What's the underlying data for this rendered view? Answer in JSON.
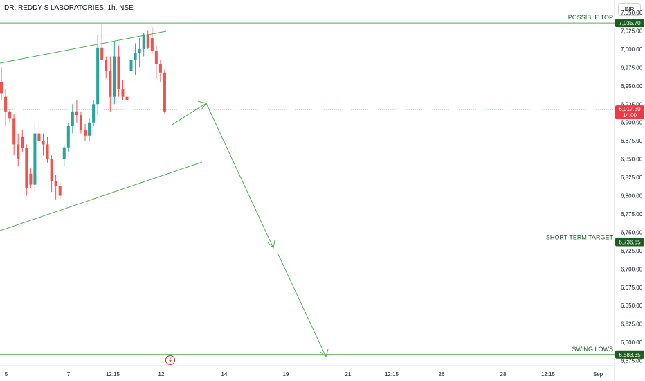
{
  "header": {
    "symbol_title": "DR. REDDY S LABORATORIES, 1h, NSE",
    "currency_button": "INR"
  },
  "colors": {
    "up": "#26a69a",
    "down": "#ef5350",
    "annotation": "#4caf50",
    "level_badge": "#1b5e20",
    "current_price": "#f23645"
  },
  "icons": {
    "events_marker": "lightning-icon"
  },
  "chart_data": {
    "type": "candlestick",
    "title": "DR. REDDY S LABORATORIES, 1h, NSE",
    "xlabel": "",
    "ylabel": "",
    "ylim": [
      6568,
      7067
    ],
    "grid": false,
    "y_axis_ticks": [
      "7,050.00",
      "7,025.00",
      "7,000.00",
      "6,975.00",
      "6,950.00",
      "6,925.00",
      "6,900.00",
      "6,875.00",
      "6,850.00",
      "6,825.00",
      "6,800.00",
      "6,775.00",
      "6,750.00",
      "6,725.00",
      "6,700.00",
      "6,675.00",
      "6,650.00",
      "6,625.00",
      "6,600.00",
      "6,575.00"
    ],
    "x_axis_ticks": [
      "5",
      "7",
      "12:15",
      "12",
      "14",
      "19",
      "21",
      "12:15",
      "26",
      "28",
      "12:15",
      "Sep"
    ],
    "ohlc": [
      [
        6955,
        6975,
        6930,
        6940
      ],
      [
        6935,
        6945,
        6895,
        6915
      ],
      [
        6915,
        6918,
        6900,
        6905
      ],
      [
        6905,
        6912,
        6855,
        6870
      ],
      [
        6870,
        6885,
        6840,
        6850
      ],
      [
        6880,
        6890,
        6860,
        6865
      ],
      [
        6865,
        6870,
        6800,
        6810
      ],
      [
        6830,
        6838,
        6810,
        6815
      ],
      [
        6815,
        6900,
        6805,
        6885
      ],
      [
        6885,
        6900,
        6870,
        6875
      ],
      [
        6875,
        6885,
        6855,
        6870
      ],
      [
        6870,
        6880,
        6845,
        6850
      ],
      [
        6850,
        6855,
        6805,
        6820
      ],
      [
        6820,
        6828,
        6795,
        6813
      ],
      [
        6813,
        6818,
        6795,
        6800
      ],
      [
        6850,
        6870,
        6840,
        6866
      ],
      [
        6866,
        6900,
        6860,
        6895
      ],
      [
        6895,
        6925,
        6885,
        6915
      ],
      [
        6915,
        6930,
        6900,
        6910
      ],
      [
        6910,
        6915,
        6885,
        6890
      ],
      [
        6890,
        6898,
        6875,
        6882
      ],
      [
        6882,
        6905,
        6875,
        6900
      ],
      [
        6900,
        6930,
        6895,
        6925
      ],
      [
        6925,
        7020,
        6910,
        7002
      ],
      [
        7002,
        7035,
        6985,
        6985
      ],
      [
        6985,
        6990,
        6960,
        6970
      ],
      [
        6970,
        6990,
        6915,
        6935
      ],
      [
        6935,
        7010,
        6925,
        6990
      ],
      [
        6990,
        7005,
        6935,
        6945
      ],
      [
        6945,
        6958,
        6930,
        6935
      ],
      [
        6935,
        6945,
        6910,
        6930
      ],
      [
        6970,
        6995,
        6955,
        6985
      ],
      [
        6985,
        7008,
        6965,
        6995
      ],
      [
        6995,
        7015,
        6975,
        7000
      ],
      [
        7000,
        7022,
        6990,
        7020
      ],
      [
        7020,
        7025,
        7000,
        7002
      ],
      [
        7015,
        7030,
        6995,
        6998
      ],
      [
        6998,
        7005,
        6960,
        6980
      ],
      [
        6980,
        6985,
        6955,
        6968
      ],
      [
        6968,
        6972,
        6912,
        6915
      ]
    ],
    "levels": [
      {
        "label": "POSSIBLE TOP",
        "value": 7035.7,
        "badge": "7,035.70"
      },
      {
        "label": "SHORT TERM TARGET",
        "value": 6736.65,
        "badge": "6,736.65"
      },
      {
        "label": "SWING LOWS",
        "value": 6583.35,
        "badge": "6,583.35"
      }
    ],
    "current_price": {
      "value": 6917.6,
      "badge": "6,917.60",
      "countdown": "14:00"
    }
  }
}
